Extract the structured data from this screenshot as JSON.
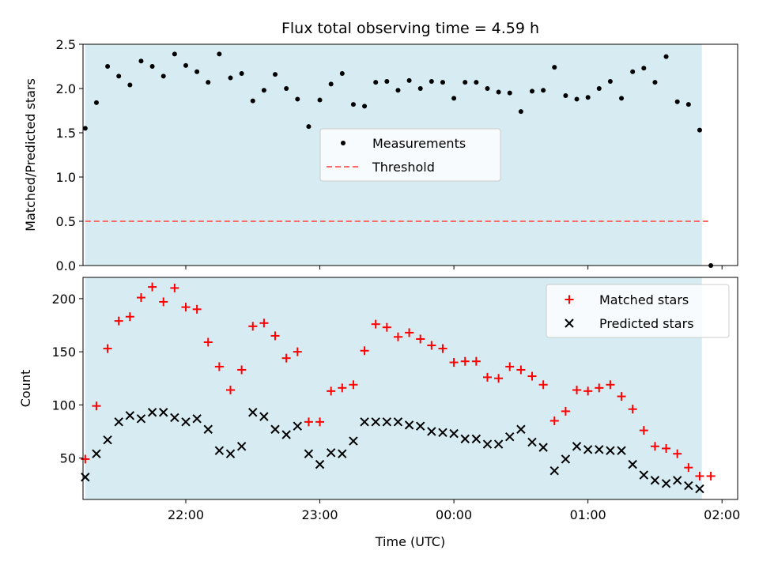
{
  "chart_data": [
    {
      "type": "scatter",
      "title": "Flux total observing time = 4.59 h",
      "xlabel": "",
      "ylabel": "Matched/Predicted stars",
      "x_type": "time",
      "xlim": [
        "21:14",
        "02:07"
      ],
      "ylim": [
        0,
        2.5
      ],
      "yticks": [
        "0.0",
        "0.5",
        "1.0",
        "1.5",
        "2.0",
        "2.5"
      ],
      "grid": false,
      "legend_placement": "center",
      "observing_window": [
        "21:15",
        "01:51"
      ],
      "colors": {
        "window": "#add8e6",
        "measurements": "#000000",
        "threshold": "#ff6b6b"
      },
      "series": [
        {
          "name": "Measurements",
          "marker": "dot",
          "x": [
            "21:15",
            "21:20",
            "21:25",
            "21:30",
            "21:35",
            "21:40",
            "21:45",
            "21:50",
            "21:55",
            "22:00",
            "22:05",
            "22:10",
            "22:15",
            "22:20",
            "22:25",
            "22:30",
            "22:35",
            "22:40",
            "22:45",
            "22:50",
            "22:55",
            "23:00",
            "23:05",
            "23:10",
            "23:15",
            "23:20",
            "23:25",
            "23:30",
            "23:35",
            "23:40",
            "23:45",
            "23:50",
            "23:55",
            "00:00",
            "00:05",
            "00:10",
            "00:15",
            "00:20",
            "00:25",
            "00:30",
            "00:35",
            "00:40",
            "00:45",
            "00:50",
            "00:55",
            "01:00",
            "01:05",
            "01:10",
            "01:15",
            "01:20",
            "01:25",
            "01:30",
            "01:35",
            "01:40",
            "01:45",
            "01:50",
            "01:55"
          ],
          "y": [
            1.55,
            1.84,
            2.25,
            2.14,
            2.04,
            2.31,
            2.25,
            2.14,
            2.39,
            2.26,
            2.19,
            2.07,
            2.39,
            2.12,
            2.17,
            1.86,
            1.98,
            2.16,
            2.0,
            1.88,
            1.57,
            1.87,
            2.05,
            2.17,
            1.82,
            1.8,
            2.07,
            2.08,
            1.98,
            2.09,
            2.0,
            2.08,
            2.07,
            1.89,
            2.07,
            2.07,
            2.0,
            1.96,
            1.95,
            1.74,
            1.97,
            1.98,
            2.24,
            1.92,
            1.88,
            1.9,
            2.0,
            2.08,
            1.89,
            2.19,
            2.23,
            2.07,
            2.36,
            1.85,
            1.82,
            1.53,
            0.0
          ]
        },
        {
          "name": "Threshold",
          "line_style": "dashed",
          "x": [
            "21:15",
            "01:55"
          ],
          "y": [
            0.5,
            0.5
          ]
        }
      ]
    },
    {
      "type": "scatter",
      "title": "",
      "xlabel": "Time (UTC)",
      "ylabel": "Count",
      "x_type": "time",
      "xlim": [
        "21:14",
        "02:07"
      ],
      "ylim": [
        11,
        220
      ],
      "yticks": [
        "50",
        "100",
        "150",
        "200"
      ],
      "xticks": [
        "22:00",
        "23:00",
        "00:00",
        "01:00",
        "02:00"
      ],
      "grid": false,
      "legend_placement": "top-right",
      "observing_window": [
        "21:15",
        "01:51"
      ],
      "colors": {
        "window": "#add8e6",
        "matched": "#ff0000",
        "predicted": "#000000"
      },
      "series": [
        {
          "name": "Matched stars",
          "marker": "plus",
          "x": [
            "21:15",
            "21:20",
            "21:25",
            "21:30",
            "21:35",
            "21:40",
            "21:45",
            "21:50",
            "21:55",
            "22:00",
            "22:05",
            "22:10",
            "22:15",
            "22:20",
            "22:25",
            "22:30",
            "22:35",
            "22:40",
            "22:45",
            "22:50",
            "22:55",
            "23:00",
            "23:05",
            "23:10",
            "23:15",
            "23:20",
            "23:25",
            "23:30",
            "23:35",
            "23:40",
            "23:45",
            "23:50",
            "23:55",
            "00:00",
            "00:05",
            "00:10",
            "00:15",
            "00:20",
            "00:25",
            "00:30",
            "00:35",
            "00:40",
            "00:45",
            "00:50",
            "00:55",
            "01:00",
            "01:05",
            "01:10",
            "01:15",
            "01:20",
            "01:25",
            "01:30",
            "01:35",
            "01:40",
            "01:45",
            "01:50",
            "01:55"
          ],
          "y": [
            49,
            99,
            153,
            179,
            183,
            201,
            211,
            197,
            210,
            192,
            190,
            159,
            136,
            114,
            133,
            174,
            177,
            165,
            144,
            150,
            84,
            84,
            113,
            116,
            119,
            151,
            176,
            173,
            164,
            168,
            162,
            156,
            153,
            140,
            141,
            141,
            126,
            125,
            136,
            133,
            127,
            119,
            85,
            94,
            114,
            113,
            116,
            119,
            108,
            96,
            76,
            61,
            59,
            54,
            41,
            33,
            33
          ]
        },
        {
          "name": "Predicted stars",
          "marker": "x",
          "x": [
            "21:15",
            "21:20",
            "21:25",
            "21:30",
            "21:35",
            "21:40",
            "21:45",
            "21:50",
            "21:55",
            "22:00",
            "22:05",
            "22:10",
            "22:15",
            "22:20",
            "22:25",
            "22:30",
            "22:35",
            "22:40",
            "22:45",
            "22:50",
            "22:55",
            "23:00",
            "23:05",
            "23:10",
            "23:15",
            "23:20",
            "23:25",
            "23:30",
            "23:35",
            "23:40",
            "23:45",
            "23:50",
            "23:55",
            "00:00",
            "00:05",
            "00:10",
            "00:15",
            "00:20",
            "00:25",
            "00:30",
            "00:35",
            "00:40",
            "00:45",
            "00:50",
            "00:55",
            "01:00",
            "01:05",
            "01:10",
            "01:15",
            "01:20",
            "01:25",
            "01:30",
            "01:35",
            "01:40",
            "01:45",
            "01:50"
          ],
          "y": [
            32,
            54,
            67,
            84,
            90,
            87,
            93,
            93,
            88,
            84,
            87,
            77,
            57,
            54,
            61,
            93,
            89,
            77,
            72,
            80,
            54,
            44,
            55,
            54,
            66,
            84,
            84,
            84,
            84,
            81,
            80,
            75,
            74,
            73,
            68,
            68,
            63,
            63,
            70,
            77,
            65,
            60,
            38,
            49,
            61,
            58,
            58,
            57,
            57,
            44,
            34,
            29,
            26,
            29,
            24,
            21
          ]
        }
      ]
    }
  ]
}
